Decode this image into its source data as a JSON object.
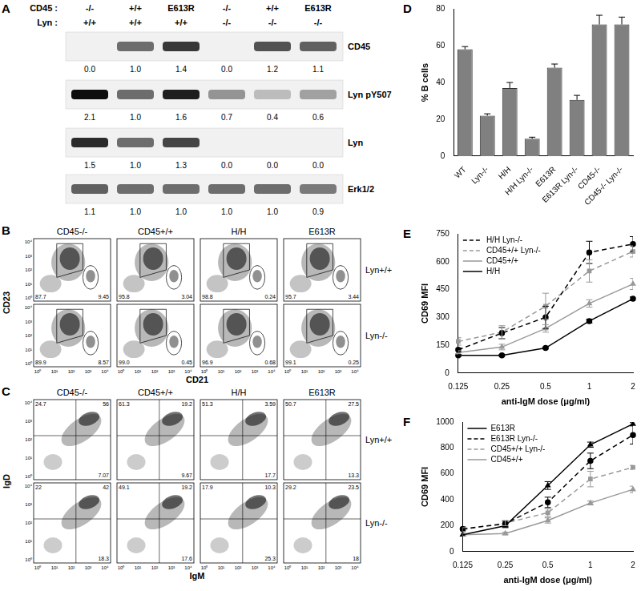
{
  "chart_data": [
    {
      "panel": "D",
      "type": "bar",
      "categories": [
        "WT",
        "Lyn-/-",
        "H/H",
        "H/H Lyn-/-",
        "E613R",
        "E613R Lyn-/-",
        "CD45-/-",
        "CD45-/- Lyn-/-"
      ],
      "values": [
        58,
        22,
        37,
        9.5,
        48,
        30.5,
        71.5,
        71.5
      ],
      "errors": [
        1.5,
        1,
        3,
        0.8,
        2,
        2.5,
        5,
        4
      ],
      "color": "#808080",
      "y_label": "% B cells",
      "ylim": [
        0,
        80
      ],
      "yticks": [
        0,
        20,
        40,
        60,
        80
      ],
      "grid": false
    },
    {
      "panel": "E",
      "type": "line",
      "categories": [
        "0.125",
        "0.25",
        "0.5",
        "1",
        "2"
      ],
      "x_label": "anti-IgM dose (μg/ml)",
      "y_label": "CD69 MFI",
      "ylim": [
        0,
        750
      ],
      "yticks": [
        0,
        150,
        300,
        450,
        600,
        750
      ],
      "grid": false,
      "legend": "top-left",
      "series": [
        {
          "name": "H/H Lyn-/-",
          "color": "#000000",
          "line_style": "dashed",
          "marker": "circle",
          "values": [
            125,
            215,
            300,
            650,
            695
          ],
          "errors": [
            10,
            30,
            60,
            60,
            40
          ]
        },
        {
          "name": "CD45+/+ Lyn-/-",
          "color": "#999999",
          "line_style": "dashed",
          "marker": "square",
          "values": [
            170,
            220,
            360,
            550,
            655
          ],
          "errors": [
            20,
            35,
            70,
            60,
            30
          ]
        },
        {
          "name": "CD45+/+",
          "color": "#999999",
          "line_style": "solid",
          "marker": "triangle",
          "values": [
            110,
            140,
            240,
            375,
            480
          ],
          "errors": [
            10,
            15,
            20,
            20,
            30
          ]
        },
        {
          "name": "H/H",
          "color": "#000000",
          "line_style": "solid",
          "marker": "circle",
          "values": [
            95,
            95,
            135,
            280,
            400
          ],
          "errors": [
            5,
            5,
            5,
            10,
            10
          ]
        }
      ]
    },
    {
      "panel": "F",
      "type": "line",
      "categories": [
        "0.125",
        "0.25",
        "0.5",
        "1",
        "2"
      ],
      "x_label": "anti-IgM dose (μg/ml)",
      "y_label": "CD69 MFI",
      "ylim": [
        0,
        1000
      ],
      "yticks": [
        0,
        200,
        400,
        600,
        800,
        1000
      ],
      "grid": false,
      "legend": "top-left",
      "series": [
        {
          "name": "E613R",
          "color": "#000000",
          "line_style": "solid",
          "marker": "triangle",
          "values": [
            130,
            200,
            510,
            825,
            985
          ],
          "errors": [
            10,
            15,
            30,
            20,
            10
          ]
        },
        {
          "name": "E613R Lyn-/-",
          "color": "#000000",
          "line_style": "dashed",
          "marker": "circle",
          "values": [
            175,
            215,
            380,
            700,
            900
          ],
          "errors": [
            15,
            20,
            40,
            60,
            70
          ]
        },
        {
          "name": "CD45+/+ Lyn-/-",
          "color": "#999999",
          "line_style": "dashed",
          "marker": "square",
          "values": [
            170,
            220,
            300,
            560,
            650
          ],
          "errors": [
            15,
            20,
            30,
            60,
            15
          ]
        },
        {
          "name": "CD45+/+",
          "color": "#999999",
          "line_style": "solid",
          "marker": "triangle",
          "values": [
            130,
            140,
            240,
            375,
            480
          ],
          "errors": [
            10,
            10,
            20,
            15,
            25
          ]
        }
      ]
    }
  ],
  "blot": {
    "panel": "A",
    "genotype_rows": [
      {
        "label": "CD45 :",
        "values": [
          "-/-",
          "+/+",
          "E613R",
          "-/-",
          "+/+",
          "E613R"
        ]
      },
      {
        "label": "Lyn :",
        "values": [
          "+/+",
          "+/+",
          "+/+",
          "-/-",
          "-/-",
          "-/-"
        ]
      }
    ],
    "bands": [
      {
        "name": "CD45",
        "values": [
          "0.0",
          "1.0",
          "1.4",
          "0.0",
          "1.2",
          "1.1"
        ]
      },
      {
        "name": "Lyn pY507",
        "values": [
          "2.1",
          "1.0",
          "1.6",
          "0.7",
          "0.4",
          "0.6"
        ]
      },
      {
        "name": "Lyn",
        "values": [
          "1.5",
          "1.0",
          "1.3",
          "0.0",
          "0.0",
          "0.0"
        ]
      },
      {
        "name": "Erk1/2",
        "values": [
          "1.1",
          "1.0",
          "1.0",
          "1.0",
          "1.0",
          "0.9"
        ]
      }
    ]
  },
  "flow": [
    {
      "panel": "B",
      "x_label": "CD21",
      "y_label": "CD23",
      "columns": [
        "CD45-/-",
        "CD45+/+",
        "H/H",
        "E613R"
      ],
      "rows": [
        "Lyn+/+",
        "Lyn-/-"
      ],
      "axis_ticks": [
        "10⁰",
        "10¹",
        "10²",
        "10³",
        "10⁴"
      ],
      "plots": [
        [
          [
            "87.7",
            "9.45"
          ],
          [
            "95.8",
            "3.04"
          ],
          [
            "98.8",
            "0.24"
          ],
          [
            "95.7",
            "3.44"
          ]
        ],
        [
          [
            "89.9",
            "8.57"
          ],
          [
            "99.0",
            "0.45"
          ],
          [
            "96.9",
            "0.68"
          ],
          [
            "99.1",
            "0.25"
          ]
        ]
      ]
    },
    {
      "panel": "C",
      "x_label": "IgM",
      "y_label": "IgD",
      "columns": [
        "CD45-/-",
        "CD45+/+",
        "H/H",
        "E613R"
      ],
      "rows": [
        "Lyn+/+",
        "Lyn-/-"
      ],
      "axis_ticks": [
        "10⁰",
        "10¹",
        "10²",
        "10³",
        "10⁴"
      ],
      "plots": [
        [
          [
            "24.7",
            "56",
            "7.07"
          ],
          [
            "61.3",
            "19.2",
            "9.67"
          ],
          [
            "51.3",
            "3.59",
            "17.7"
          ],
          [
            "50.7",
            "27.5",
            "13.3"
          ]
        ],
        [
          [
            "22",
            "42",
            "18.3"
          ],
          [
            "49.1",
            "19.2",
            "17.6"
          ],
          [
            "17.9",
            "10.3",
            "25.3"
          ],
          [
            "29.2",
            "23.5",
            "18"
          ]
        ]
      ]
    }
  ]
}
